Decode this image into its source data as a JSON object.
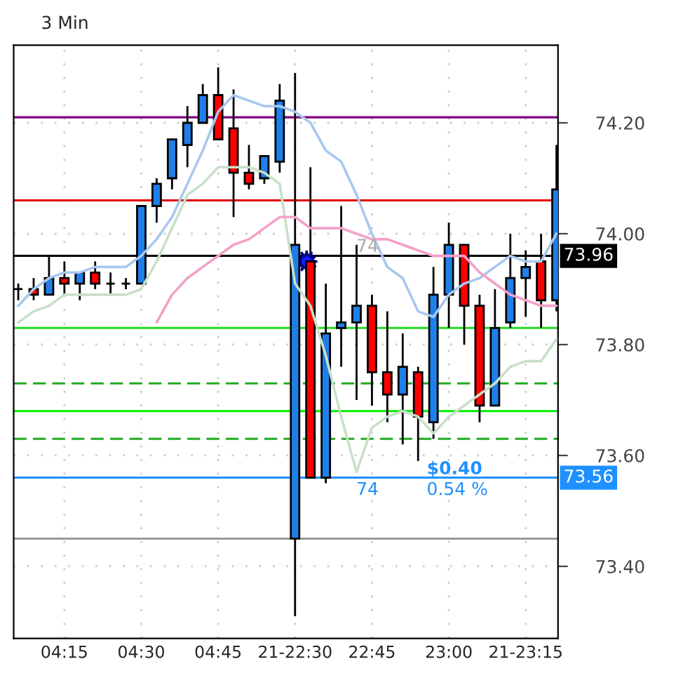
{
  "chart_data": {
    "type": "candlestick",
    "title": "3 Min",
    "categories": [
      null,
      null,
      null,
      "04:15",
      null,
      null,
      null,
      null,
      "04:30",
      null,
      null,
      null,
      null,
      "04:45",
      null,
      null,
      null,
      null,
      "21-22:30",
      null,
      null,
      null,
      null,
      "22:45",
      null,
      null,
      null,
      null,
      "23:00",
      null,
      null,
      null,
      null,
      "21-23:15",
      null,
      null
    ],
    "ohlc": [
      [
        73.9,
        73.91,
        73.88,
        73.9
      ],
      [
        73.9,
        73.92,
        73.88,
        73.89
      ],
      [
        73.89,
        73.96,
        73.89,
        73.92
      ],
      [
        73.92,
        73.95,
        73.89,
        73.91
      ],
      [
        73.91,
        73.93,
        73.88,
        73.93
      ],
      [
        73.93,
        73.95,
        73.9,
        73.91
      ],
      [
        73.91,
        73.93,
        73.89,
        73.91
      ],
      [
        73.91,
        73.92,
        73.9,
        73.91
      ],
      [
        73.91,
        74.05,
        73.91,
        74.05
      ],
      [
        74.05,
        74.1,
        74.02,
        74.09
      ],
      [
        74.1,
        74.17,
        74.08,
        74.17
      ],
      [
        74.16,
        74.23,
        74.12,
        74.2
      ],
      [
        74.2,
        74.27,
        74.2,
        74.25
      ],
      [
        74.25,
        74.3,
        74.17,
        74.17
      ],
      [
        74.19,
        74.26,
        74.03,
        74.11
      ],
      [
        74.11,
        74.16,
        74.08,
        74.09
      ],
      [
        74.1,
        74.14,
        74.09,
        74.14
      ],
      [
        74.13,
        74.27,
        74.11,
        74.24
      ],
      [
        73.45,
        74.29,
        73.31,
        73.98
      ],
      [
        73.95,
        74.12,
        73.56,
        73.56
      ],
      [
        73.56,
        73.91,
        73.55,
        73.82
      ],
      [
        73.83,
        74.05,
        73.76,
        73.84
      ],
      [
        73.84,
        73.98,
        73.7,
        73.87
      ],
      [
        73.87,
        73.89,
        73.69,
        73.75
      ],
      [
        73.75,
        73.86,
        73.66,
        73.71
      ],
      [
        73.71,
        73.82,
        73.62,
        73.76
      ],
      [
        73.75,
        73.76,
        73.59,
        73.67
      ],
      [
        73.66,
        73.94,
        73.63,
        73.89
      ],
      [
        73.89,
        74.02,
        73.83,
        73.98
      ],
      [
        73.98,
        73.98,
        73.8,
        73.87
      ],
      [
        73.87,
        73.89,
        73.66,
        73.69
      ],
      [
        73.69,
        73.9,
        73.69,
        73.83
      ],
      [
        73.84,
        74.0,
        73.83,
        73.92
      ],
      [
        73.92,
        73.97,
        73.85,
        73.94
      ],
      [
        73.95,
        74.0,
        73.83,
        73.88
      ],
      [
        73.88,
        74.16,
        73.86,
        74.08
      ]
    ],
    "colors": [
      "#000000",
      "#ff0000",
      "#1f7fe8",
      "#ff0000",
      "#1f7fe8",
      "#ff0000",
      "#000000",
      "#000000",
      "#1f7fe8",
      "#1f7fe8",
      "#1f7fe8",
      "#1f7fe8",
      "#1f7fe8",
      "#ff0000",
      "#ff0000",
      "#ff0000",
      "#1f7fe8",
      "#1f7fe8",
      "#1f7fe8",
      "#ff0000",
      "#1f7fe8",
      "#1f7fe8",
      "#1f7fe8",
      "#ff0000",
      "#ff0000",
      "#1f7fe8",
      "#ff0000",
      "#1f7fe8",
      "#1f7fe8",
      "#ff0000",
      "#ff0000",
      "#1f7fe8",
      "#1f7fe8",
      "#1f7fe8",
      "#ff0000",
      "#1f7fe8"
    ],
    "series": [
      {
        "type": "line",
        "color": "#a8c8ee",
        "values": [
          73.87,
          73.9,
          73.92,
          73.93,
          73.93,
          73.94,
          73.94,
          73.94,
          73.96,
          73.99,
          74.03,
          74.09,
          74.15,
          74.22,
          74.25,
          74.24,
          74.23,
          74.23,
          74.22,
          74.2,
          74.15,
          74.13,
          74.07,
          74.0,
          73.94,
          73.92,
          73.86,
          73.85,
          73.89,
          73.91,
          73.92,
          73.94,
          73.96,
          73.95,
          73.95,
          74.0
        ]
      },
      {
        "type": "line",
        "color": "#c8e0c8",
        "values": [
          73.84,
          73.86,
          73.87,
          73.89,
          73.89,
          73.89,
          73.89,
          73.89,
          73.9,
          73.95,
          74.01,
          74.07,
          74.09,
          74.12,
          74.12,
          74.12,
          74.11,
          74.09,
          73.91,
          73.87,
          73.78,
          73.67,
          73.57,
          73.65,
          73.67,
          73.68,
          73.67,
          73.64,
          73.67,
          73.69,
          73.71,
          73.73,
          73.76,
          73.77,
          73.77,
          73.81
        ]
      },
      {
        "type": "line",
        "color": "#f4a0c8",
        "values": [
          null,
          null,
          null,
          null,
          null,
          null,
          null,
          null,
          null,
          73.84,
          73.89,
          73.92,
          73.94,
          73.96,
          73.98,
          73.99,
          74.01,
          74.03,
          74.03,
          74.01,
          74.01,
          74.01,
          74.0,
          73.99,
          73.99,
          73.98,
          73.97,
          73.96,
          73.96,
          73.96,
          73.93,
          73.91,
          73.89,
          73.88,
          73.87,
          73.87
        ]
      }
    ],
    "ylim": [
      73.27,
      74.34
    ],
    "yticks": [
      {
        "value": 73.4,
        "label": "73.40"
      },
      {
        "value": 73.6,
        "label": "73.60"
      },
      {
        "value": 73.8,
        "label": "73.80"
      },
      {
        "value": 74.0,
        "label": "74.00"
      },
      {
        "value": 74.2,
        "label": "74.20"
      }
    ],
    "ref_lines": [
      {
        "axis": "y",
        "value": 74.21,
        "color": "#800080",
        "line_style": "solid"
      },
      {
        "axis": "y",
        "value": 74.06,
        "color": "#e00000",
        "line_style": "solid"
      },
      {
        "axis": "y",
        "value": 73.96,
        "color": "#000000",
        "line_style": "solid",
        "label": "73.96"
      },
      {
        "axis": "y",
        "value": 73.83,
        "color": "#22dd22",
        "line_style": "solid"
      },
      {
        "axis": "y",
        "value": 73.73,
        "color": "#22aa22",
        "line_style": "dashed"
      },
      {
        "axis": "y",
        "value": 73.68,
        "color": "#00ee00",
        "line_style": "solid"
      },
      {
        "axis": "y",
        "value": 73.63,
        "color": "#22aa22",
        "line_style": "dashed"
      },
      {
        "axis": "y",
        "value": 73.56,
        "color": "#1e90ff",
        "line_style": "solid",
        "label": "73.56"
      },
      {
        "axis": "y",
        "value": 73.45,
        "color": "#999999",
        "line_style": "solid"
      }
    ],
    "annotations": [
      "74",
      "$0.40",
      "74",
      "0.54 %"
    ],
    "grid": true
  }
}
